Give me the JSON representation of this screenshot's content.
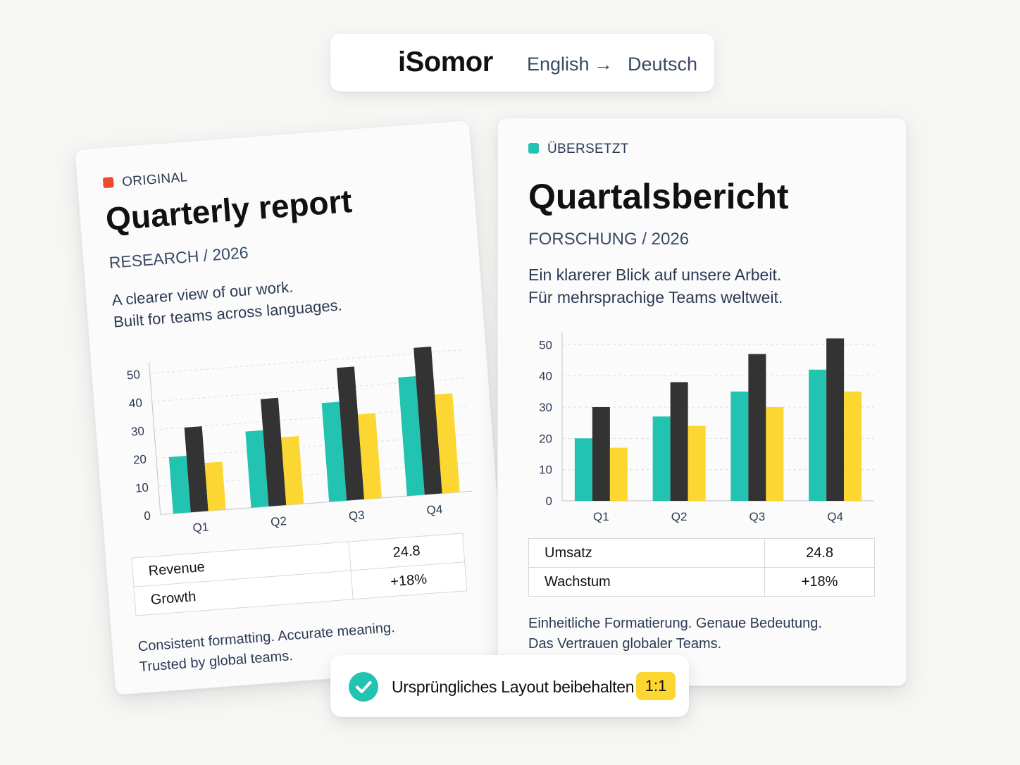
{
  "header": {
    "brand": "iSomor",
    "source_language": "English",
    "arrow": "→",
    "target_language": "Deutsch"
  },
  "colors": {
    "teal": "#22c3b1",
    "dark": "#333333",
    "yellow": "#fcd631",
    "orange_tag": "#f2492a"
  },
  "original": {
    "tag": "ORIGINAL",
    "title": "Quarterly report",
    "subtitle": "RESEARCH / 2026",
    "body_line1": "A clearer view of our work.",
    "body_line2": "Built for teams across languages.",
    "table": [
      {
        "key": "Revenue",
        "value": "24.8"
      },
      {
        "key": "Growth",
        "value": "+18%"
      }
    ],
    "footer_line1": "Consistent formatting. Accurate meaning.",
    "footer_line2": "Trusted by global teams."
  },
  "translated": {
    "tag": "ÜBERSETZT",
    "title": "Quartalsbericht",
    "subtitle": "FORSCHUNG / 2026",
    "body_line1": "Ein klarerer Blick auf unsere Arbeit.",
    "body_line2": "Für mehrsprachige Teams weltweit.",
    "table": [
      {
        "key": "Umsatz",
        "value": "24.8"
      },
      {
        "key": "Wachstum",
        "value": "+18%"
      }
    ],
    "footer_line1": "Einheitliche Formatierung. Genaue Bedeutung.",
    "footer_line2": "Das Vertrauen globaler Teams."
  },
  "badge": {
    "text": "Ursprüngliches Layout beibehalten",
    "ratio": "1:1"
  },
  "chart_data": [
    {
      "type": "bar",
      "categories": [
        "Q1",
        "Q2",
        "Q3",
        "Q4"
      ],
      "series": [
        {
          "values": [
            20,
            27,
            35,
            42
          ],
          "color": "#22c3b1"
        },
        {
          "values": [
            30,
            38,
            47,
            52
          ],
          "color": "#333333"
        },
        {
          "values": [
            17,
            24,
            30,
            35
          ],
          "color": "#fcd631"
        }
      ],
      "yticks": [
        0,
        10,
        20,
        30,
        40,
        50
      ],
      "ylim": [
        0,
        53
      ],
      "grid": true
    },
    {
      "type": "bar",
      "categories": [
        "Q1",
        "Q2",
        "Q3",
        "Q4"
      ],
      "series": [
        {
          "values": [
            20,
            27,
            35,
            42
          ],
          "color": "#22c3b1"
        },
        {
          "values": [
            30,
            38,
            47,
            52
          ],
          "color": "#333333"
        },
        {
          "values": [
            17,
            24,
            30,
            35
          ],
          "color": "#fcd631"
        }
      ],
      "yticks": [
        0,
        10,
        20,
        30,
        40,
        50
      ],
      "ylim": [
        0,
        53
      ],
      "grid": true
    }
  ]
}
